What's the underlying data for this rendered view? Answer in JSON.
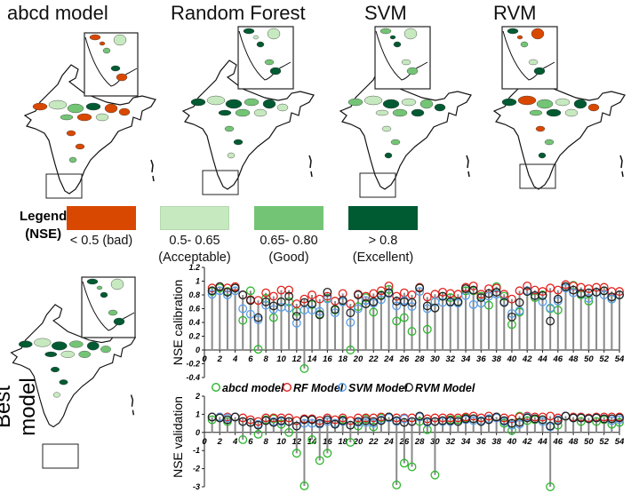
{
  "panels": [
    {
      "title": "abcd model"
    },
    {
      "title": "Random Forest"
    },
    {
      "title": "SVM"
    },
    {
      "title": "RVM"
    }
  ],
  "best_model_label": "Best model",
  "legend": {
    "title_line1": "Legend",
    "title_line2": "(NSE)",
    "classes": [
      {
        "label_line1": "< 0.5 (bad)",
        "label_line2": "",
        "color": "#d94801"
      },
      {
        "label_line1": "0.5- 0.65",
        "label_line2": "(Acceptable)",
        "color": "#c7e9c0"
      },
      {
        "label_line1": "0.65- 0.80",
        "label_line2": "(Good)",
        "color": "#74c476"
      },
      {
        "label_line1": "> 0.8",
        "label_line2": "(Excellent)",
        "color": "#005a32"
      }
    ]
  },
  "series_legend": [
    {
      "name": "abcd model",
      "color": "#2db52d"
    },
    {
      "name": "RF Model",
      "color": "#e0201b"
    },
    {
      "name": "SVM Model",
      "color": "#5a9ee8"
    },
    {
      "name": "RVM Model",
      "color": "#222222"
    }
  ],
  "chart_data": [
    {
      "type": "scatter",
      "ylabel": "NSE calibration",
      "xlim": [
        0,
        54
      ],
      "ylim": [
        -0.4,
        1.2
      ],
      "xticks": [
        0,
        2,
        4,
        6,
        8,
        10,
        12,
        14,
        16,
        18,
        20,
        22,
        24,
        26,
        28,
        30,
        32,
        34,
        36,
        38,
        40,
        42,
        44,
        46,
        48,
        50,
        52,
        54
      ],
      "yticks": [
        1.2,
        1,
        0.8,
        0.6,
        0.4,
        0.2,
        0,
        -0.2,
        -0.4
      ],
      "ytick_labels": [
        "1.2",
        "1",
        "0.8",
        "0.6",
        "0.4",
        "0.2",
        "0",
        "-0.2",
        "-0.4"
      ],
      "grid": false,
      "series": [
        {
          "name": "abcd model",
          "values": [
            0.85,
            0.9,
            0.85,
            0.9,
            0.43,
            0.86,
            0.01,
            0.75,
            0.47,
            0.7,
            0.7,
            0.56,
            -0.27,
            0.66,
            0.52,
            0.75,
            0.58,
            0.7,
            0,
            0.63,
            0.76,
            0.55,
            0.8,
            0.88,
            0.42,
            0.47,
            0.27,
            0.9,
            0.3,
            0.7,
            0.78,
            0.76,
            0.7,
            0.86,
            0.86,
            0.78,
            0.65,
            0.92,
            0.78,
            0.37,
            0.55,
            0.85,
            0.76,
            0.8,
            0.6,
            0.58,
            0.92,
            0.94,
            0.8,
            0.71,
            0.84,
            0.86,
            0.74,
            0.8
          ]
        },
        {
          "name": "RF Model",
          "values": [
            0.9,
            0.92,
            0.9,
            0.92,
            0.8,
            0.73,
            0.72,
            0.83,
            0.78,
            0.87,
            0.87,
            0.67,
            0.74,
            0.8,
            0.74,
            0.78,
            0.71,
            0.82,
            0.67,
            0.81,
            0.78,
            0.82,
            0.86,
            0.93,
            0.78,
            0.83,
            0.8,
            0.91,
            0.77,
            0.81,
            0.84,
            0.82,
            0.81,
            0.91,
            0.93,
            0.81,
            0.89,
            0.9,
            0.81,
            0.74,
            0.86,
            0.93,
            0.87,
            0.85,
            0.9,
            0.87,
            0.95,
            0.93,
            0.91,
            0.89,
            0.91,
            0.91,
            0.85,
            0.85
          ]
        },
        {
          "name": "SVM Model",
          "values": [
            0.81,
            0.86,
            0.8,
            0.86,
            0.6,
            0.52,
            0.44,
            0.65,
            0.59,
            0.62,
            0.61,
            0.39,
            0.58,
            0.58,
            0.56,
            0.74,
            0.54,
            0.7,
            0.4,
            0.6,
            0.72,
            0.68,
            0.73,
            0.82,
            0.64,
            0.72,
            0.63,
            0.85,
            0.6,
            0.7,
            0.69,
            0.69,
            0.68,
            0.79,
            0.66,
            0.68,
            0.78,
            0.81,
            0.7,
            0.53,
            0.57,
            0.86,
            0.79,
            0.7,
            0.61,
            0.71,
            0.9,
            0.83,
            0.82,
            0.75,
            0.84,
            0.8,
            0.74,
            0.8
          ]
        },
        {
          "name": "RVM Model",
          "values": [
            0.86,
            0.92,
            0.84,
            0.9,
            0.8,
            0.72,
            0.47,
            0.7,
            0.64,
            0.7,
            0.78,
            0.49,
            0.69,
            0.67,
            0.51,
            0.84,
            0.59,
            0.72,
            0.54,
            0.8,
            0.67,
            0.7,
            0.79,
            0.83,
            0.71,
            0.7,
            0.69,
            0.9,
            0.64,
            0.61,
            0.78,
            0.7,
            0.7,
            0.89,
            0.87,
            0.76,
            0.82,
            0.84,
            0.69,
            0.48,
            0.69,
            0.85,
            0.79,
            0.79,
            0.42,
            0.74,
            0.92,
            0.87,
            0.82,
            0.83,
            0.84,
            0.86,
            0.77,
            0.8
          ]
        }
      ]
    },
    {
      "type": "scatter",
      "ylabel": "NSE validation",
      "xlim": [
        0,
        54
      ],
      "ylim": [
        -3,
        2
      ],
      "xticks": [
        0,
        2,
        4,
        6,
        8,
        10,
        12,
        14,
        16,
        18,
        20,
        22,
        24,
        26,
        28,
        30,
        32,
        34,
        36,
        38,
        40,
        42,
        44,
        46,
        48,
        50,
        52,
        54
      ],
      "yticks": [
        2,
        1,
        0,
        -1,
        -2,
        -3
      ],
      "ytick_labels": [
        "2",
        "1",
        "0",
        "-1",
        "-2",
        "-3"
      ],
      "grid": false,
      "series": [
        {
          "name": "abcd model",
          "values": [
            0.7,
            0.8,
            0.6,
            0.85,
            -0.4,
            0.55,
            -0.1,
            0.7,
            0.75,
            0.45,
            0,
            -1.15,
            -2.95,
            -0.4,
            -1.55,
            -1.15,
            0.5,
            0.7,
            -0.55,
            0.35,
            0.75,
            0.3,
            0.8,
            0.85,
            -2.9,
            -1.7,
            -1.9,
            0.6,
            0.15,
            -2.35,
            0.6,
            0.7,
            0.7,
            0.8,
            0.75,
            0.65,
            0.75,
            0.85,
            0.5,
            0.1,
            0.9,
            0.65,
            0.7,
            0.7,
            -3.0,
            0.4,
            0.9,
            0.8,
            0.6,
            0.75,
            0.6,
            0.7,
            0.45,
            0.55
          ]
        },
        {
          "name": "RF Model",
          "values": [
            0.85,
            0.85,
            0.85,
            0.85,
            0.8,
            0.7,
            0.6,
            0.8,
            0.8,
            0.8,
            0.8,
            0.65,
            0.75,
            0.75,
            0.65,
            0.8,
            0.7,
            0.8,
            0.65,
            0.8,
            0.8,
            0.8,
            0.85,
            0.85,
            0.8,
            0.8,
            0.8,
            0.85,
            0.75,
            0.8,
            0.8,
            0.8,
            0.8,
            0.85,
            0.9,
            0.8,
            0.9,
            0.85,
            0.8,
            0.75,
            0.85,
            0.9,
            0.85,
            0.85,
            0.9,
            0.8,
            0.9,
            0.85,
            0.85,
            0.8,
            0.85,
            0.85,
            0.85,
            0.85
          ]
        },
        {
          "name": "SVM Model",
          "values": [
            0.85,
            0.85,
            0.8,
            0.85,
            0.6,
            0.55,
            0.45,
            0.65,
            0.6,
            0.6,
            0.6,
            0.35,
            0.5,
            0.5,
            0.45,
            0.6,
            0.5,
            0.6,
            0.4,
            0.55,
            0.55,
            0.5,
            0.7,
            0.8,
            0.6,
            0.75,
            0.6,
            0.85,
            0.55,
            0.6,
            0.6,
            0.6,
            0.6,
            0.7,
            0.65,
            0.65,
            0.75,
            0.8,
            0.6,
            0.4,
            0.45,
            0.85,
            0.75,
            0.6,
            0.3,
            0.7,
            0.9,
            0.8,
            0.8,
            0.75,
            0.8,
            0.75,
            0.65,
            0.7
          ]
        },
        {
          "name": "RVM Model",
          "values": [
            0.85,
            0.8,
            0.7,
            0.85,
            0.6,
            0.55,
            0.4,
            0.65,
            0.55,
            0.65,
            0.6,
            0.35,
            0.7,
            0.7,
            0.5,
            0.7,
            0.45,
            0.65,
            0.4,
            0.6,
            0.65,
            0.6,
            0.65,
            0.85,
            0.65,
            0.55,
            0.6,
            0.9,
            0.6,
            0.6,
            0.65,
            0.65,
            0.6,
            0.75,
            0.75,
            0.6,
            0.7,
            0.85,
            0.65,
            0.5,
            0.55,
            0.8,
            0.75,
            0.7,
            0.35,
            0.65,
            0.9,
            0.8,
            0.8,
            0.75,
            0.8,
            0.75,
            0.75,
            0.8
          ]
        }
      ]
    }
  ]
}
